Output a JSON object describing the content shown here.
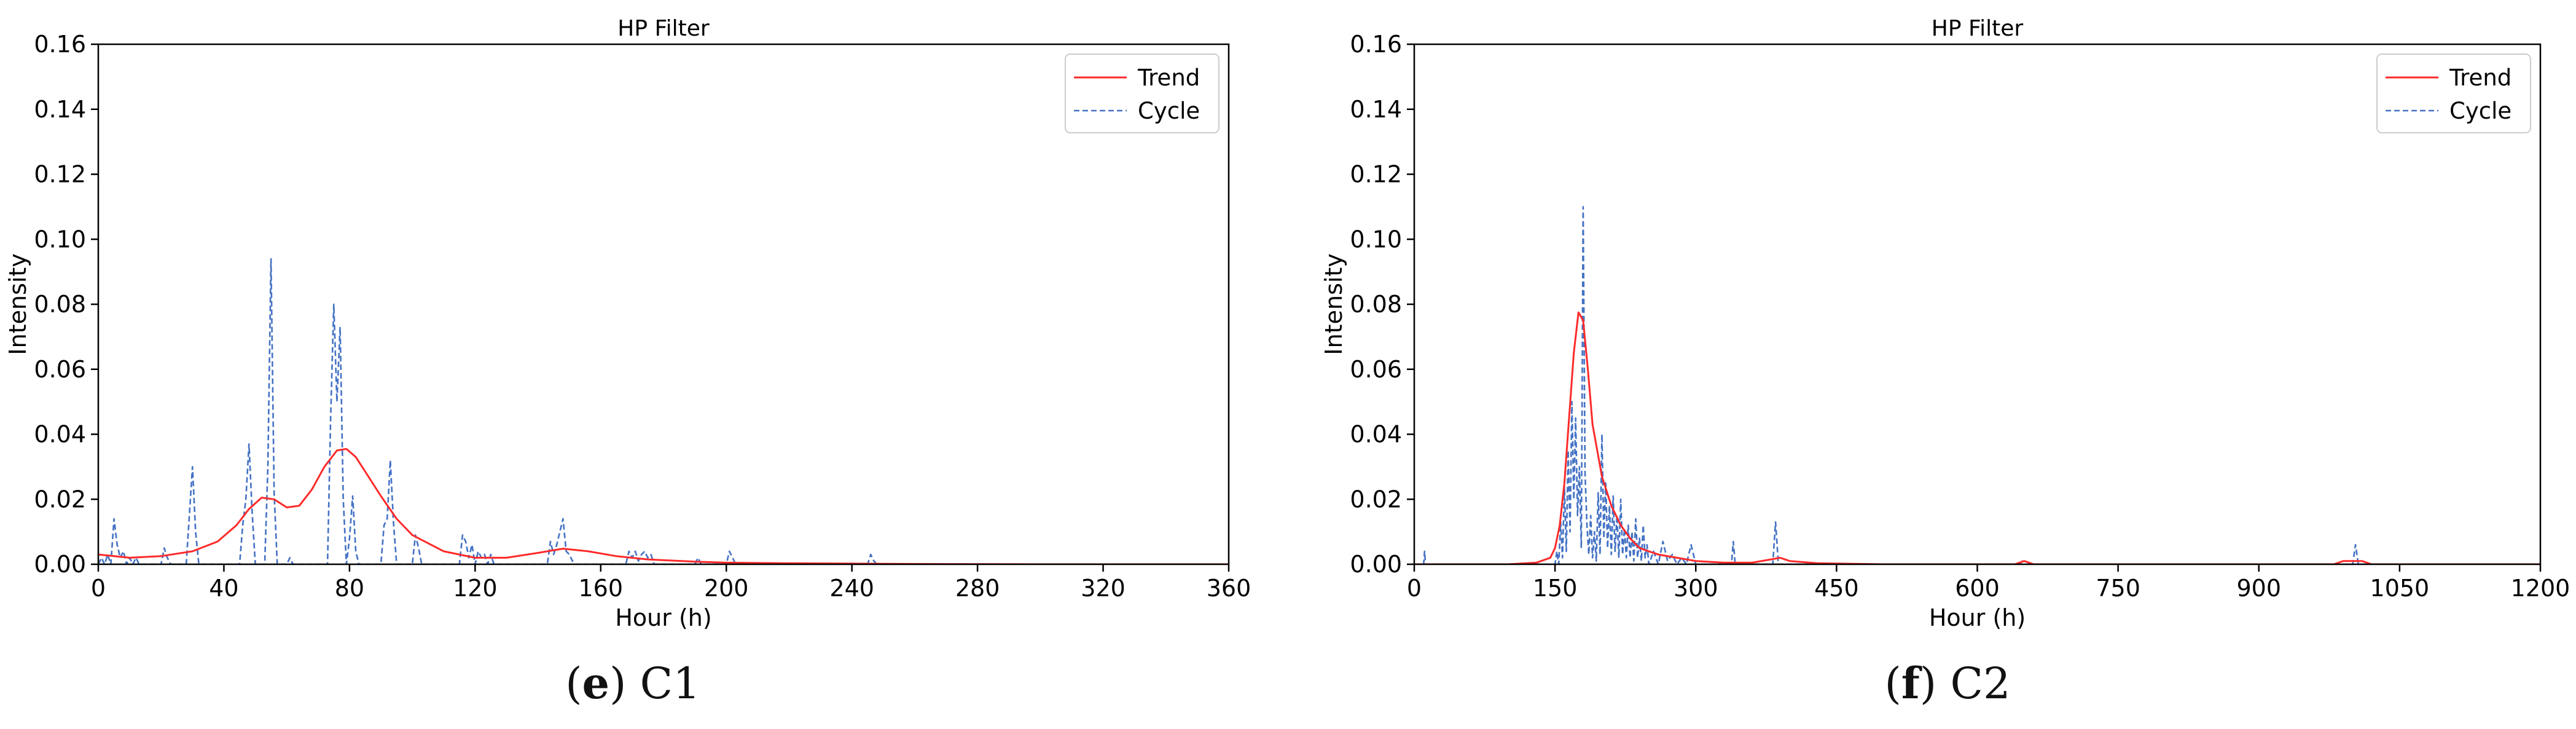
{
  "figure": {
    "captions": [
      {
        "letter": "e",
        "text": "C1"
      },
      {
        "letter": "f",
        "text": "C2"
      }
    ]
  },
  "chart_data": [
    {
      "type": "line",
      "title": "HP Filter",
      "xlabel": "Hour (h)",
      "ylabel": "Intensity",
      "xlim": [
        0,
        360
      ],
      "ylim": [
        0,
        0.16
      ],
      "xticks": [
        0,
        40,
        80,
        120,
        160,
        200,
        240,
        280,
        320,
        360
      ],
      "yticks": [
        "0.00",
        "0.02",
        "0.04",
        "0.06",
        "0.08",
        "0.10",
        "0.12",
        "0.14",
        "0.16"
      ],
      "grid": false,
      "legend_position": "top-right",
      "series": [
        {
          "name": "Trend",
          "color": "#ff2a2a",
          "style": "solid",
          "x": [
            0,
            10,
            20,
            30,
            38,
            44,
            48,
            52,
            56,
            60,
            64,
            68,
            72,
            76,
            79,
            82,
            86,
            90,
            95,
            100,
            110,
            120,
            130,
            140,
            148,
            156,
            165,
            175,
            190,
            200,
            220,
            240,
            260,
            300,
            360
          ],
          "y": [
            0.003,
            0.002,
            0.0025,
            0.004,
            0.007,
            0.012,
            0.017,
            0.0205,
            0.02,
            0.0175,
            0.018,
            0.023,
            0.03,
            0.035,
            0.0355,
            0.033,
            0.027,
            0.021,
            0.014,
            0.009,
            0.004,
            0.002,
            0.002,
            0.0035,
            0.0048,
            0.004,
            0.0025,
            0.0015,
            0.0008,
            0.0005,
            0.0003,
            0.0002,
            0.0001,
            0.0,
            0.0
          ]
        },
        {
          "name": "Cycle",
          "color": "#4472c4",
          "style": "dashed",
          "x": [
            0,
            1,
            2,
            3,
            4,
            5,
            6,
            7,
            8,
            9,
            10,
            11,
            12,
            13,
            14,
            20,
            21,
            22,
            23,
            28,
            29,
            30,
            31,
            32,
            45,
            46,
            47,
            48,
            49,
            50,
            53,
            54,
            55,
            56,
            57,
            60,
            61,
            62,
            73,
            74,
            75,
            76,
            77,
            78,
            79,
            80,
            81,
            82,
            83,
            90,
            91,
            92,
            93,
            94,
            95,
            100,
            101,
            102,
            103,
            115,
            116,
            117,
            118,
            119,
            120,
            121,
            122,
            123,
            124,
            125,
            126,
            143,
            144,
            145,
            146,
            147,
            148,
            149,
            150,
            151,
            152,
            168,
            169,
            170,
            171,
            172,
            173,
            174,
            175,
            176,
            177,
            190,
            191,
            192,
            200,
            201,
            202,
            203,
            245,
            246,
            247,
            248,
            360
          ],
          "y": [
            0,
            0.002,
            0,
            0.003,
            0,
            0.014,
            0.006,
            0.002,
            0.004,
            0,
            0.002,
            0,
            0.002,
            0,
            0,
            0,
            0.005,
            0.002,
            0,
            0,
            0.015,
            0.03,
            0.01,
            0,
            0,
            0.012,
            0.02,
            0.037,
            0.016,
            0,
            0,
            0.03,
            0.094,
            0.022,
            0,
            0,
            0.002,
            0,
            0,
            0.045,
            0.08,
            0.05,
            0.073,
            0.02,
            0,
            0.008,
            0.021,
            0.004,
            0,
            0,
            0.012,
            0.014,
            0.032,
            0.013,
            0,
            0,
            0.009,
            0.005,
            0,
            0,
            0.009,
            0.007,
            0.002,
            0.006,
            0,
            0.004,
            0.002,
            0.003,
            0,
            0.003,
            0,
            0,
            0.007,
            0.003,
            0.006,
            0.01,
            0.014,
            0.004,
            0.003,
            0.001,
            0,
            0,
            0.004,
            0.002,
            0.004,
            0.001,
            0.003,
            0.004,
            0.002,
            0.003,
            0,
            0,
            0.002,
            0,
            0,
            0.004,
            0.002,
            0,
            0,
            0.003,
            0.001,
            0,
            0
          ]
        }
      ]
    },
    {
      "type": "line",
      "title": "HP Filter",
      "xlabel": "Hour (h)",
      "ylabel": "Intensity",
      "xlim": [
        0,
        1200
      ],
      "ylim": [
        0,
        0.16
      ],
      "xticks": [
        0,
        150,
        300,
        450,
        600,
        750,
        900,
        1050,
        1200
      ],
      "yticks": [
        "0.00",
        "0.02",
        "0.04",
        "0.06",
        "0.08",
        "0.10",
        "0.12",
        "0.14",
        "0.16"
      ],
      "grid": false,
      "legend_position": "top-right",
      "series": [
        {
          "name": "Trend",
          "color": "#ff2a2a",
          "style": "solid",
          "x": [
            0,
            100,
            130,
            145,
            150,
            155,
            160,
            165,
            170,
            175,
            180,
            185,
            190,
            200,
            210,
            220,
            230,
            240,
            250,
            260,
            280,
            300,
            330,
            360,
            380,
            390,
            400,
            430,
            500,
            640,
            650,
            660,
            700,
            980,
            990,
            1000,
            1010,
            1020,
            1050,
            1200
          ],
          "y": [
            0,
            0,
            0.0005,
            0.002,
            0.005,
            0.012,
            0.025,
            0.045,
            0.065,
            0.0775,
            0.075,
            0.06,
            0.043,
            0.027,
            0.018,
            0.012,
            0.008,
            0.005,
            0.004,
            0.003,
            0.002,
            0.001,
            0.0005,
            0.0005,
            0.0015,
            0.002,
            0.001,
            0.0003,
            0,
            0,
            0.001,
            0,
            0,
            0,
            0.001,
            0.001,
            0.001,
            0,
            0,
            0
          ]
        },
        {
          "name": "Cycle",
          "color": "#4472c4",
          "style": "dashed",
          "x": [
            0,
            10,
            11,
            12,
            14,
            150,
            152,
            154,
            156,
            158,
            160,
            162,
            164,
            166,
            168,
            170,
            172,
            174,
            176,
            178,
            180,
            182,
            184,
            186,
            188,
            190,
            192,
            194,
            196,
            198,
            200,
            202,
            204,
            206,
            208,
            210,
            212,
            214,
            216,
            218,
            220,
            222,
            224,
            226,
            228,
            230,
            232,
            234,
            236,
            238,
            240,
            242,
            244,
            246,
            248,
            250,
            255,
            260,
            265,
            270,
            275,
            280,
            285,
            290,
            295,
            300,
            338,
            340,
            342,
            382,
            385,
            388,
            645,
            648,
            651,
            1000,
            1003,
            1006,
            1200
          ],
          "y": [
            0,
            0,
            0.004,
            0,
            0,
            0,
            0.004,
            0,
            0.013,
            0.002,
            0.024,
            0.004,
            0.035,
            0.01,
            0.05,
            0.02,
            0.045,
            0.015,
            0.03,
            0.005,
            0.11,
            0.028,
            0.012,
            0.003,
            0.015,
            0.002,
            0.01,
            0.001,
            0.022,
            0.003,
            0.04,
            0.008,
            0.025,
            0.005,
            0.018,
            0.003,
            0.021,
            0.004,
            0.015,
            0.002,
            0.02,
            0.003,
            0.011,
            0.002,
            0.012,
            0.002,
            0.01,
            0.001,
            0.014,
            0.002,
            0.008,
            0.001,
            0.012,
            0.002,
            0.006,
            0,
            0.004,
            0,
            0.007,
            0.001,
            0.003,
            0,
            0.002,
            0,
            0.006,
            0,
            0,
            0.007,
            0,
            0,
            0.013,
            0,
            0,
            0.001,
            0,
            0,
            0.006,
            0,
            0
          ]
        }
      ]
    }
  ]
}
